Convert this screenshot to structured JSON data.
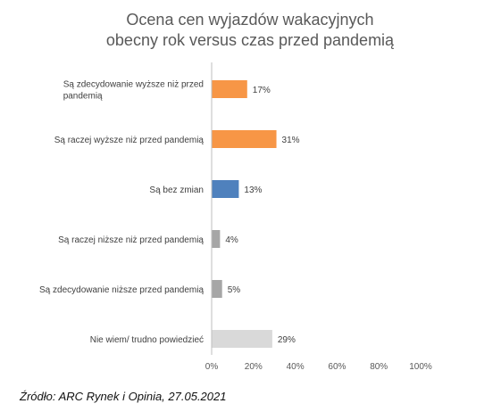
{
  "chart_data": {
    "type": "bar",
    "orientation": "horizontal",
    "title": [
      "Ocena cen wyjazdów wakacyjnych",
      "obecny rok versus czas przed pandemią"
    ],
    "categories": [
      [
        "Są zdecydowanie wyższe niż przed",
        "pandemią"
      ],
      [
        "Są raczej wyższe niż przed pandemią"
      ],
      [
        "Są bez zmian"
      ],
      [
        "Są raczej niższe niż przed pandemią"
      ],
      [
        "Są zdecydowanie niższe przed pandemią"
      ],
      [
        "Nie wiem/ trudno powiedzieć"
      ]
    ],
    "values": [
      17,
      31,
      13,
      4,
      5,
      29
    ],
    "value_labels": [
      "17%",
      "31%",
      "13%",
      "4%",
      "5%",
      "29%"
    ],
    "colors": [
      "#F79646",
      "#F79646",
      "#4F81BD",
      "#A6A6A6",
      "#A6A6A6",
      "#D9D9D9"
    ],
    "xlim": [
      0,
      100
    ],
    "ticks": [
      0,
      20,
      40,
      60,
      80,
      100
    ],
    "tick_labels": [
      "0%",
      "20%",
      "40%",
      "60%",
      "80%",
      "100%"
    ],
    "grid": false,
    "legend": "none"
  },
  "source_note": "Źródło: ARC Rynek i Opinia, 27.05.2021"
}
